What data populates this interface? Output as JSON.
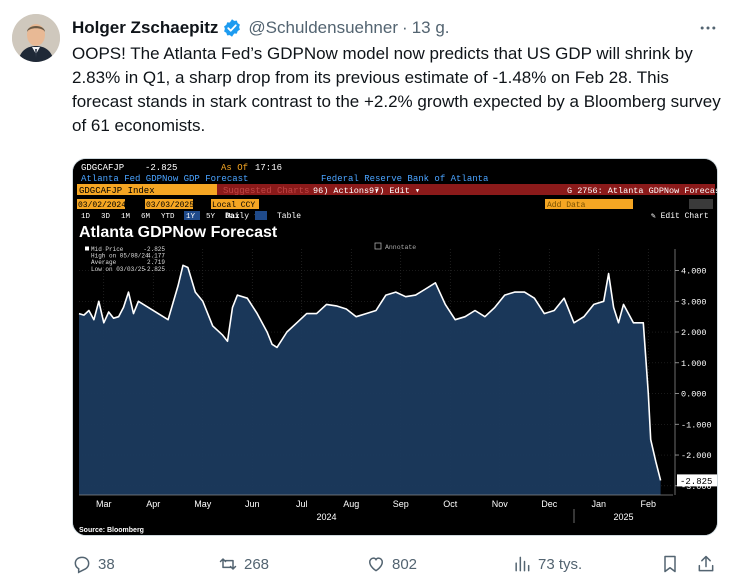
{
  "author": {
    "name": "Holger Zschaepitz",
    "handle": "@Schuldensuehner",
    "separator": "·",
    "time": "13 g."
  },
  "tweet": {
    "text": "OOPS! The Atlanta Fed’s GDPNow model now predicts that US GDP will shrink by 2.83% in Q1, a sharp drop from its previous estimate of -1.48% on Feb 28. This forecast stands in stark contrast to the +2.2% growth expected by a Bloomberg survey of 61 economists."
  },
  "terminal": {
    "ticker": "GDGCAFJP",
    "ticker_value": "-2.825",
    "as_of_label": "As Of",
    "as_of_time": "17:16",
    "subtitle_left": "Atlanta Fed GDPNow GDP Forecast",
    "subtitle_right": "Federal Reserve Bank of Atlanta",
    "security": "GDGCAFJP Index",
    "suggested": "Suggested Charts",
    "actions_menu": "96) Actions ▾",
    "edit_menu": "97) Edit ▾",
    "chart_name": "G 2756: Atlanta GDPNow Forecast",
    "date_from": "03/02/2024",
    "date_to": "03/03/2025",
    "currency": "Local CCY",
    "ranges": [
      "1D",
      "3D",
      "1M",
      "6M",
      "YTD",
      "1Y",
      "5Y",
      "Max"
    ],
    "active_range": "1Y",
    "frequency": "Daily ▾",
    "table_label": "Table",
    "add_data": "Add Data",
    "edit_chart": "✎ Edit Chart",
    "annotate": "Annotate",
    "source": "Source: Bloomberg"
  },
  "chart_data": {
    "type": "area",
    "title": "Atlanta GDPNow Forecast",
    "legend": [
      {
        "label": "Mid Price",
        "value": "-2.825"
      },
      {
        "label": "High on 05/08/24",
        "value": "4.177"
      },
      {
        "label": "Average",
        "value": "2.719"
      },
      {
        "label": "Low on 03/03/25",
        "value": "-2.825"
      }
    ],
    "x_ticks": [
      "Mar",
      "Apr",
      "May",
      "Jun",
      "Jul",
      "Aug",
      "Sep",
      "Oct",
      "Nov",
      "Dec",
      "Jan",
      "Feb"
    ],
    "years": [
      "2024",
      "2025"
    ],
    "y_ticks": [
      "4.000",
      "3.000",
      "2.000",
      "1.000",
      "0.000",
      "-1.000",
      "-2.000",
      "-3.000"
    ],
    "ylim": [
      -3.3,
      4.7
    ],
    "last_value_label": "-2.825",
    "series": [
      {
        "name": "Mid Price",
        "x": [
          0,
          0.1,
          0.2,
          0.3,
          0.4,
          0.5,
          0.6,
          0.7,
          0.8,
          0.9,
          1.0,
          1.1,
          1.2,
          1.4,
          1.6,
          1.8,
          2.0,
          2.1,
          2.2,
          2.35,
          2.5,
          2.7,
          2.9,
          3.0,
          3.1,
          3.2,
          3.4,
          3.6,
          3.8,
          3.9,
          4.0,
          4.2,
          4.4,
          4.6,
          4.8,
          5.0,
          5.2,
          5.4,
          5.6,
          5.8,
          6.0,
          6.2,
          6.4,
          6.6,
          6.8,
          7.0,
          7.2,
          7.4,
          7.6,
          7.8,
          8.0,
          8.2,
          8.4,
          8.6,
          8.8,
          9.0,
          9.2,
          9.4,
          9.6,
          9.8,
          10.0,
          10.2,
          10.4,
          10.6,
          10.7,
          10.8,
          10.9,
          11.0,
          11.2,
          11.4,
          11.5,
          11.55,
          11.65,
          11.75
        ],
        "y": [
          2.6,
          2.55,
          2.7,
          2.4,
          3.0,
          2.3,
          2.65,
          2.45,
          2.5,
          2.8,
          3.3,
          2.6,
          3.0,
          2.8,
          2.6,
          2.4,
          3.5,
          4.17,
          4.1,
          3.3,
          3.0,
          2.2,
          1.9,
          1.7,
          2.8,
          3.2,
          3.1,
          2.6,
          2.0,
          1.6,
          1.5,
          2.0,
          2.3,
          2.6,
          2.6,
          2.9,
          2.85,
          2.75,
          2.5,
          2.6,
          2.7,
          3.2,
          3.3,
          3.15,
          3.2,
          3.4,
          3.6,
          2.9,
          2.4,
          2.5,
          2.7,
          2.5,
          2.8,
          3.2,
          3.3,
          3.3,
          3.1,
          2.6,
          2.7,
          3.1,
          2.3,
          2.5,
          2.9,
          3.0,
          3.9,
          2.8,
          2.3,
          2.9,
          2.3,
          2.3,
          0.0,
          -1.5,
          -2.2,
          -2.825
        ]
      }
    ]
  },
  "actions": {
    "replies": "38",
    "reposts": "268",
    "likes": "802",
    "views": "73 tys."
  },
  "colors": {
    "verified": "#1d9bf0",
    "area_fill": "#1b3a5e",
    "area_line": "#ffffff",
    "terminal_orange": "#f5a623",
    "terminal_red": "#8b1a1a",
    "terminal_blue": "#4aa3ff"
  }
}
